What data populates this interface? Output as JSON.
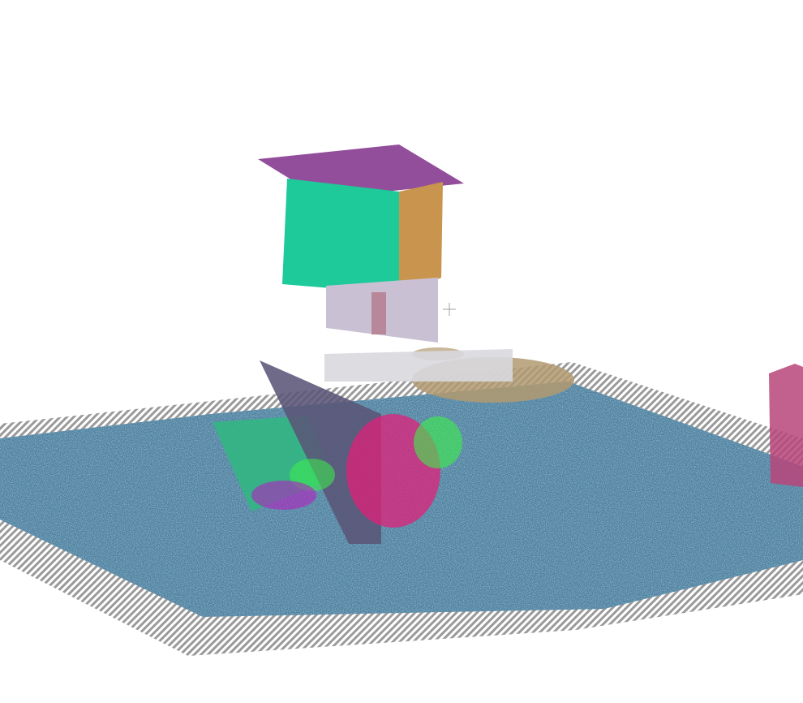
{
  "scene": {
    "background": "#ffffff",
    "colors": {
      "ground": "#4d7f9e",
      "ground_light": "#6f97b2",
      "hatch": "#9a9a9a",
      "cube_top": "#8a3f93",
      "cube_front": "#1ec99a",
      "cube_side": "#c9944e",
      "lower_panel": "#c9c1d3",
      "green_plane": "#33b683",
      "dark_plane": "#5a5578",
      "magenta": "#e0207a",
      "neon_green": "#3cf04a",
      "purple": "#b31fc0",
      "tan": "#b29a70",
      "right_object": "#b8457a",
      "crosshair": "#a0a0a0"
    },
    "icons": {
      "crosshair": "crosshair-icon"
    }
  }
}
